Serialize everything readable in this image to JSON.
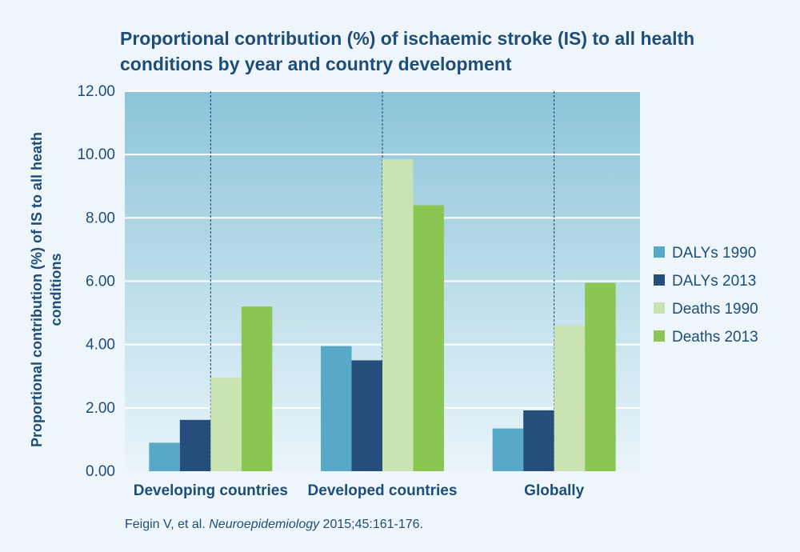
{
  "chart_data": {
    "type": "bar",
    "title_lines": [
      "Proportional contribution (%) of ischaemic stroke (IS) to all health",
      "conditions by year and country development"
    ],
    "ylabel_lines": [
      "Proportional contribution (%) of IS to all heath",
      "conditions"
    ],
    "xlabel": "",
    "ylim": [
      0,
      12
    ],
    "yticks": [
      "0.00",
      "2.00",
      "4.00",
      "6.00",
      "8.00",
      "10.00",
      "12.00"
    ],
    "categories": [
      "Developing countries",
      "Developed countries",
      "Globally"
    ],
    "series": [
      {
        "name": "DALYs 1990",
        "color": "#58a9c7",
        "values": [
          0.9,
          3.95,
          1.35
        ]
      },
      {
        "name": "DALYs 2013",
        "color": "#254e7c",
        "values": [
          1.62,
          3.5,
          1.92
        ]
      },
      {
        "name": "Deaths 1990",
        "color": "#c9e4b2",
        "values": [
          2.95,
          9.85,
          4.6
        ]
      },
      {
        "name": "Deaths 2013",
        "color": "#8bc653",
        "values": [
          5.2,
          8.4,
          5.95
        ]
      }
    ],
    "grid": true,
    "legend_position": "right"
  },
  "citation": {
    "authors": "Feigin V, et al. ",
    "journal": "Neuroepidemiology",
    "details": " 2015;45:161-176."
  }
}
